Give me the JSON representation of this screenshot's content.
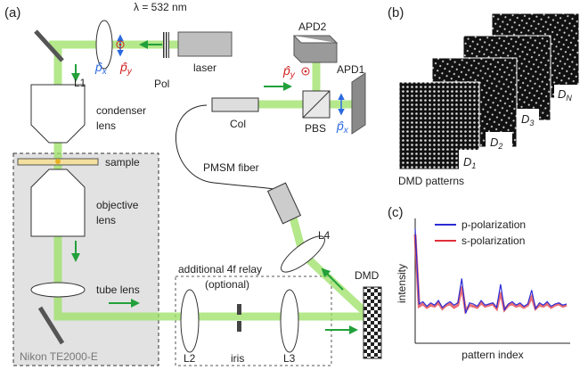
{
  "panel_a": {
    "label": "(a)",
    "wavelength": "λ = 532 nm",
    "l1": "L1",
    "pol": "Pol",
    "laser": "laser",
    "px": {
      "base": "p̂",
      "sub": "x"
    },
    "py": {
      "base": "p̂",
      "sub": "y"
    },
    "condenser": [
      "condenser",
      "lens"
    ],
    "sample": "sample",
    "objective": [
      "objective",
      "lens"
    ],
    "tube_lens": "tube lens",
    "microscope": "Nikon TE2000-E",
    "apd2": "APD2",
    "apd1": "APD1",
    "col": "Col",
    "pbs": "PBS",
    "fiber": "PMSM fiber",
    "l4": "L4",
    "dmd": "DMD",
    "relay": [
      "additional 4f relay",
      "(optional)"
    ],
    "l2": "L2",
    "iris": "iris",
    "l3": "L3"
  },
  "panel_b": {
    "label": "(b)",
    "caption": "DMD patterns",
    "patterns": [
      {
        "base": "D",
        "sub": "1"
      },
      {
        "base": "D",
        "sub": "2"
      },
      {
        "base": "D",
        "sub": "3"
      },
      {
        "base": "D",
        "sub": "N"
      }
    ],
    "ellipsis": "..."
  },
  "panel_c": {
    "label": "(c)",
    "chart_data": {
      "type": "line",
      "ylabel": "intensity",
      "xlabel": "pattern index",
      "x": [
        1,
        2,
        3,
        4,
        5,
        6,
        7,
        8,
        9,
        10,
        11,
        12,
        13,
        14,
        15,
        16,
        17,
        18,
        19,
        20,
        21,
        22,
        23,
        24,
        25,
        26,
        27,
        28,
        29,
        30,
        31,
        32,
        33,
        34,
        35,
        36,
        37,
        38,
        39,
        40
      ],
      "xlim": [
        1,
        40
      ],
      "ylim": [
        0,
        1
      ],
      "series": [
        {
          "name": "p-polarization",
          "color": "#2b2bd6",
          "values": [
            0.95,
            0.3,
            0.32,
            0.28,
            0.31,
            0.29,
            0.33,
            0.27,
            0.3,
            0.32,
            0.29,
            0.31,
            0.52,
            0.22,
            0.31,
            0.3,
            0.28,
            0.33,
            0.29,
            0.3,
            0.31,
            0.27,
            0.47,
            0.25,
            0.3,
            0.32,
            0.29,
            0.31,
            0.28,
            0.3,
            0.42,
            0.26,
            0.31,
            0.29,
            0.32,
            0.28,
            0.3,
            0.31,
            0.29,
            0.3
          ]
        },
        {
          "name": "s-polarization",
          "color": "#e0303a",
          "values": [
            0.9,
            0.28,
            0.3,
            0.27,
            0.29,
            0.28,
            0.31,
            0.26,
            0.29,
            0.3,
            0.27,
            0.29,
            0.45,
            0.24,
            0.29,
            0.28,
            0.27,
            0.31,
            0.28,
            0.29,
            0.3,
            0.26,
            0.4,
            0.25,
            0.29,
            0.3,
            0.28,
            0.29,
            0.27,
            0.29,
            0.36,
            0.26,
            0.29,
            0.28,
            0.3,
            0.27,
            0.29,
            0.3,
            0.28,
            0.29
          ]
        }
      ]
    }
  }
}
